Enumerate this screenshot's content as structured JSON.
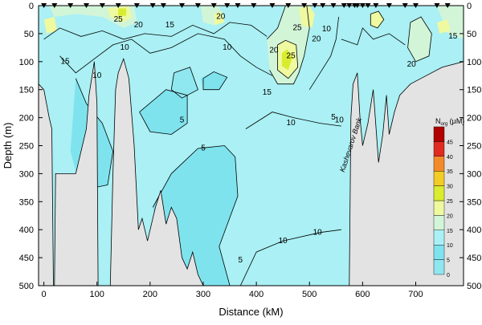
{
  "chart_data": {
    "type": "contour",
    "title": "",
    "xlabel": "Distance (kM)",
    "ylabel": "Depth (m)",
    "xlim": [
      -10,
      790
    ],
    "ylim": [
      500,
      0
    ],
    "x_ticks": [
      0,
      100,
      200,
      300,
      400,
      500,
      600,
      700
    ],
    "y_ticks": [
      0,
      50,
      100,
      150,
      200,
      250,
      300,
      350,
      400,
      450,
      500
    ],
    "contour_levels": [
      5,
      10,
      15,
      20,
      25
    ],
    "contour_labels": [
      {
        "text": "25",
        "x": 140,
        "y": 25
      },
      {
        "text": "20",
        "x": 178,
        "y": 35
      },
      {
        "text": "15",
        "x": 237,
        "y": 35
      },
      {
        "text": "10",
        "x": 152,
        "y": 75
      },
      {
        "text": "15",
        "x": 40,
        "y": 100
      },
      {
        "text": "10",
        "x": 100,
        "y": 125
      },
      {
        "text": "20",
        "x": 333,
        "y": 20
      },
      {
        "text": "10",
        "x": 345,
        "y": 75
      },
      {
        "text": "5",
        "x": 260,
        "y": 205
      },
      {
        "text": "5",
        "x": 300,
        "y": 255
      },
      {
        "text": "15",
        "x": 420,
        "y": 155
      },
      {
        "text": "20",
        "x": 433,
        "y": 80
      },
      {
        "text": "25",
        "x": 477,
        "y": 40
      },
      {
        "text": "25",
        "x": 465,
        "y": 90
      },
      {
        "text": "20",
        "x": 513,
        "y": 60
      },
      {
        "text": "10",
        "x": 465,
        "y": 210
      },
      {
        "text": "5",
        "x": 545,
        "y": 200
      },
      {
        "text": "10",
        "x": 556,
        "y": 205
      },
      {
        "text": "10",
        "x": 532,
        "y": 42
      },
      {
        "text": "20",
        "x": 692,
        "y": 105
      },
      {
        "text": "15",
        "x": 770,
        "y": 55
      },
      {
        "text": "5",
        "x": 370,
        "y": 455
      },
      {
        "text": "10",
        "x": 450,
        "y": 420
      },
      {
        "text": "10",
        "x": 515,
        "y": 405
      }
    ],
    "annotation": "Kashevarov Bank",
    "stations_km": [
      0,
      20,
      50,
      80,
      110,
      140,
      175,
      205,
      225,
      260,
      290,
      320,
      345,
      365,
      395,
      430,
      460,
      490,
      510,
      525,
      545,
      565,
      575,
      585,
      590,
      600,
      610,
      625,
      650,
      680,
      700,
      740,
      760
    ],
    "colorbar": {
      "title": "N",
      "subscript": "org",
      "unit": " (μM)",
      "labels": [
        "0",
        "5",
        "10",
        "15",
        "20",
        "25",
        "30",
        "35",
        "40",
        "45"
      ],
      "colors": [
        "#bff3f7",
        "#8fe7f0",
        "#7fe3ee",
        "#aaf0f4",
        "#d2f5d8",
        "#eef9a0",
        "#d9ec30",
        "#f3cc25",
        "#f38a2a",
        "#e02b20",
        "#b00000"
      ]
    }
  }
}
